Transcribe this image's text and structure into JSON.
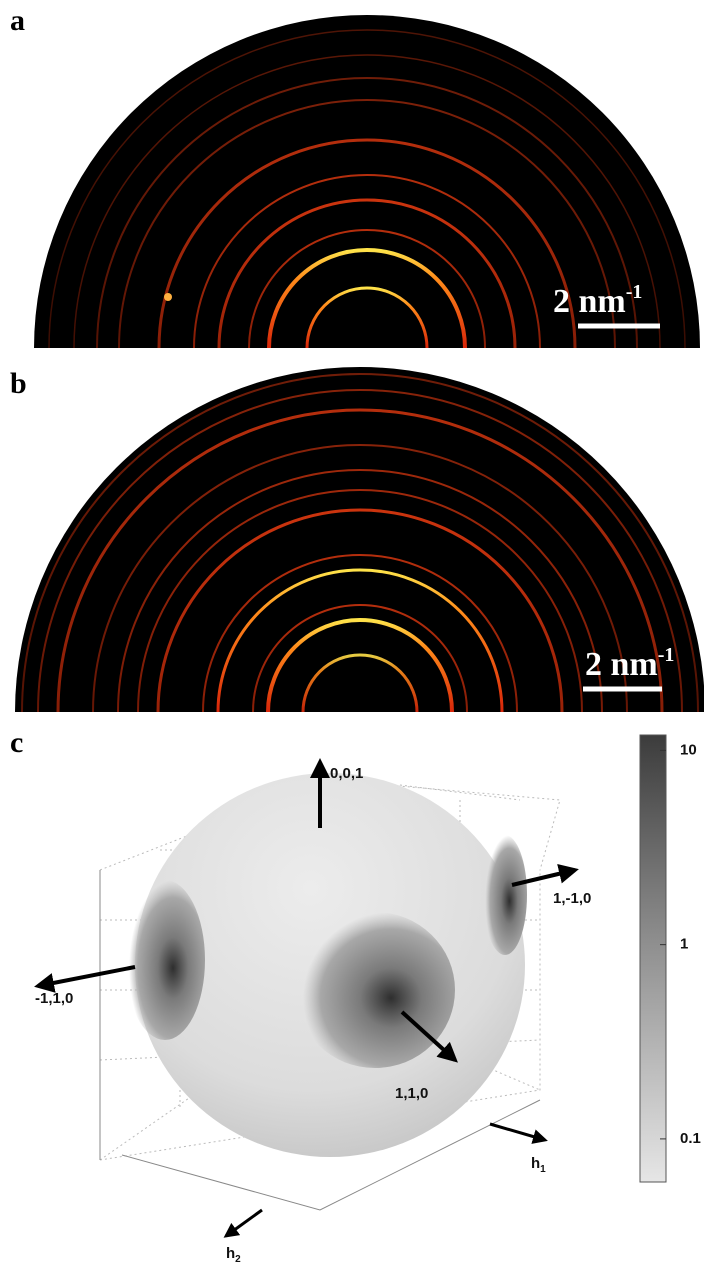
{
  "panels": [
    {
      "label": "a",
      "scale_bar": {
        "text": "2 nm",
        "exponent": "-1"
      }
    },
    {
      "label": "b",
      "scale_bar": {
        "text": "2 nm",
        "exponent": "-1"
      }
    },
    {
      "label": "c",
      "axes": {
        "up": "0,0,1",
        "right": "1,-1,0",
        "left": "-1,1,0",
        "front": "1,1,0",
        "h1": {
          "text": "h",
          "subscript": "1"
        },
        "h2": {
          "text": "h",
          "subscript": "2"
        }
      },
      "colorbar": {
        "log_scale": true,
        "lim": [
          0.06,
          12
        ],
        "ticks": [
          0.1,
          1,
          10
        ]
      }
    }
  ]
}
